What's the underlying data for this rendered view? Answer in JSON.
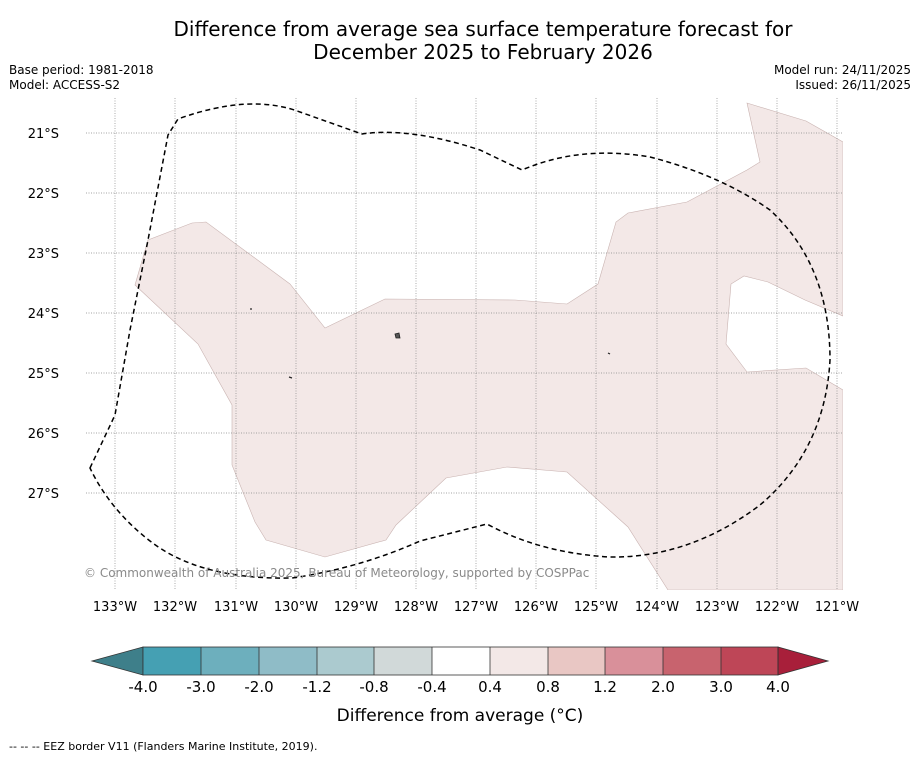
{
  "title": {
    "line1": "Difference from average sea surface temperature forecast for",
    "line2": "December 2025 to February 2026"
  },
  "meta_left": {
    "base_period": "Base period: 1981-2018",
    "model": "Model: ACCESS-S2"
  },
  "meta_right": {
    "model_run": "Model run: 24/11/2025",
    "issued": "Issued: 26/11/2025"
  },
  "map": {
    "lat_labels": [
      "21°S",
      "22°S",
      "23°S",
      "24°S",
      "25°S",
      "26°S",
      "27°S"
    ],
    "lon_labels": [
      "133°W",
      "132°W",
      "131°W",
      "130°W",
      "129°W",
      "128°W",
      "127°W",
      "126°W",
      "125°W",
      "124°W",
      "123°W",
      "122°W",
      "121°W"
    ],
    "copyright": "© Commonwealth of Australia 2025, Bureau of Meteorology, supported by COSPPac",
    "anomaly_fill_color": "#f3e8e7"
  },
  "colorbar": {
    "ticks": [
      "-4.0",
      "-3.0",
      "-2.0",
      "-1.2",
      "-0.8",
      "-0.4",
      "0.4",
      "0.8",
      "1.2",
      "2.0",
      "3.0",
      "4.0"
    ],
    "colors": [
      "#45a0b3",
      "#6dafbd",
      "#8fbcc7",
      "#abcacf",
      "#d1d9d9",
      "#ffffff",
      "#f3e8e7",
      "#e9c7c4",
      "#d9909a",
      "#c8636e",
      "#be4657"
    ],
    "under_color": "#3e7f8a",
    "over_color": "#a81f3a",
    "label": "Difference from average (°C)"
  },
  "footer": "--  --  -- EEZ border V11 (Flanders Marine Institute, 2019)."
}
